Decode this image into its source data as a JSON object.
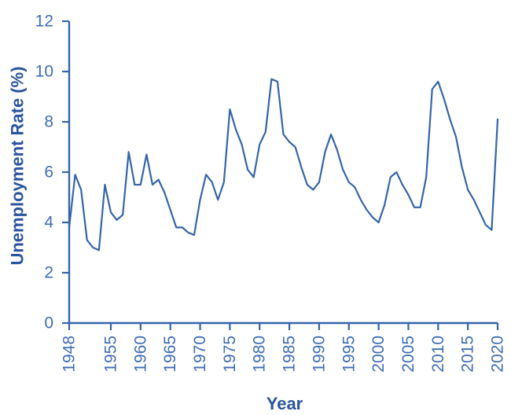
{
  "chart_data": {
    "type": "line",
    "title": "",
    "xlabel": "Year",
    "ylabel": "Unemployment Rate (%)",
    "x_range": [
      1948,
      2020
    ],
    "x_step": 1,
    "ylim": [
      0,
      12
    ],
    "grid": false,
    "legend": "none",
    "x_ticks": [
      1948,
      1955,
      1960,
      1965,
      1970,
      1975,
      1980,
      1985,
      1990,
      1995,
      2000,
      2005,
      2010,
      2015,
      2020
    ],
    "y_ticks": [
      0,
      2,
      4,
      6,
      8,
      10,
      12
    ],
    "series": [
      {
        "name": "unemployment-rate",
        "x_start": 1948,
        "values": [
          3.8,
          5.9,
          5.3,
          3.3,
          3.0,
          2.9,
          5.5,
          4.4,
          4.1,
          4.3,
          6.8,
          5.5,
          5.5,
          6.7,
          5.5,
          5.7,
          5.2,
          4.5,
          3.8,
          3.8,
          3.6,
          3.5,
          4.9,
          5.9,
          5.6,
          4.9,
          5.6,
          8.5,
          7.7,
          7.1,
          6.1,
          5.8,
          7.1,
          7.6,
          9.7,
          9.6,
          7.5,
          7.2,
          7.0,
          6.2,
          5.5,
          5.3,
          5.6,
          6.8,
          7.5,
          6.9,
          6.1,
          5.6,
          5.4,
          4.9,
          4.5,
          4.2,
          4.0,
          4.7,
          5.8,
          6.0,
          5.5,
          5.1,
          4.6,
          4.6,
          5.8,
          9.3,
          9.6,
          8.9,
          8.1,
          7.4,
          6.2,
          5.3,
          4.9,
          4.4,
          3.9,
          3.7,
          8.1
        ]
      }
    ]
  },
  "colors": {
    "background": "#FFFFFF",
    "line": "#3465A8",
    "axis": "#3465A8",
    "tick_label": "#3E6CB5",
    "axis_title": "#2B549E"
  }
}
